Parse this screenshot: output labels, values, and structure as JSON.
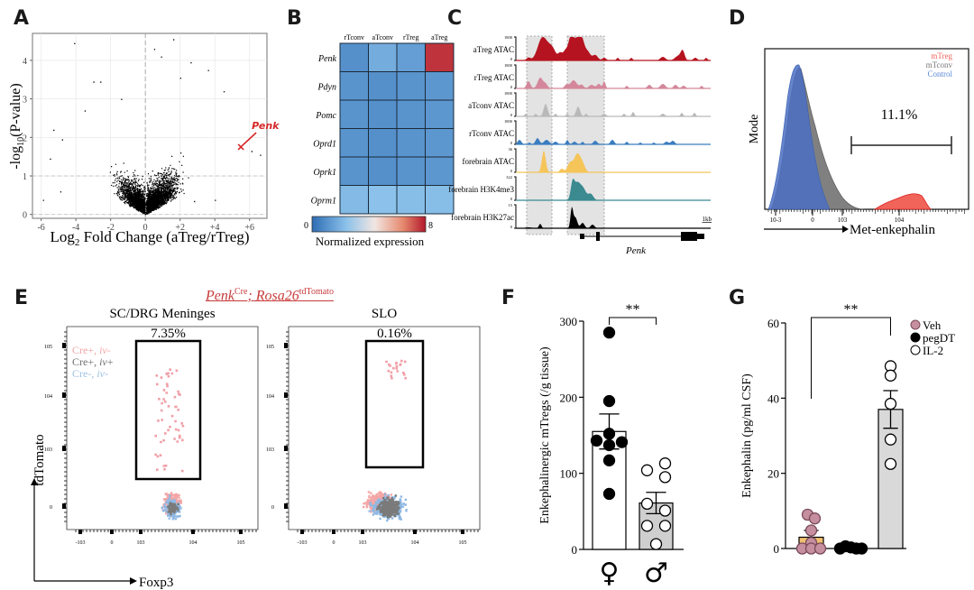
{
  "panels": {
    "A": {
      "letter": "A"
    },
    "B": {
      "letter": "B"
    },
    "C": {
      "letter": "C"
    },
    "D": {
      "letter": "D"
    },
    "E": {
      "letter": "E",
      "genotype_main": "Penk",
      "genotype_sup1": "Cre",
      "genotype_mid": "; Rosa26",
      "genotype_sup2": "tdTomato"
    },
    "F": {
      "letter": "F"
    },
    "G": {
      "letter": "G"
    }
  },
  "chart_data": [
    {
      "id": "A",
      "type": "scatter",
      "title": "",
      "xlabel": "Log2 Fold Change (aTreg/rTreg)",
      "xlabel_main": "Log",
      "xlabel_sub": "2",
      "xlabel_rest": " Fold Change (aTreg/rTreg)",
      "ylabel_pre": "-log",
      "ylabel_sub": "10",
      "ylabel_post": "(P-value)",
      "xlim": [
        -6.5,
        7
      ],
      "ylim": [
        -0.1,
        4.7
      ],
      "xticks": [
        -6,
        -4,
        -2,
        0,
        2,
        4,
        6
      ],
      "xtick_labels": [
        "-6",
        "-4",
        "-2",
        "0",
        "+2",
        "+4",
        "+6"
      ],
      "yticks": [
        0,
        1,
        2,
        3,
        4
      ],
      "ytick_labels": [
        "0",
        "1",
        "2",
        "3",
        "4"
      ],
      "grid": true,
      "threshold_lines": {
        "x": 0,
        "y": [
          0,
          1
        ]
      },
      "highlight": {
        "label": "Penk",
        "x": 5.5,
        "y": 1.75,
        "color": "#d62728"
      },
      "points_description": "Volcano plot of thousands of genes; dense cloud symmetric near 0, more up-regulated genes on positive side",
      "sample_points": [
        [
          -5.9,
          0.38
        ],
        [
          -4.1,
          4.45
        ],
        [
          -3.0,
          3.45
        ],
        [
          -2.6,
          3.45
        ],
        [
          -5.3,
          2.2
        ],
        [
          -4.8,
          1.95
        ],
        [
          -5.5,
          1.45
        ],
        [
          -3.5,
          2.7
        ],
        [
          -1.4,
          3.0
        ],
        [
          -4.9,
          0.6
        ],
        [
          0.5,
          4.3
        ],
        [
          1.6,
          4.55
        ],
        [
          0.9,
          4.1
        ],
        [
          3.6,
          3.75
        ],
        [
          2.6,
          3.95
        ],
        [
          2.0,
          3.55
        ],
        [
          4.5,
          3.2
        ],
        [
          6.6,
          1.55
        ],
        [
          6.1,
          1.65
        ],
        [
          4.0,
          0.38
        ],
        [
          2.8,
          0.35
        ]
      ]
    },
    {
      "id": "B",
      "type": "heatmap",
      "columns": [
        "rTconv",
        "aTconv",
        "rTreg",
        "aTreg"
      ],
      "rows": [
        "Penk",
        "Pdyn",
        "Pomc",
        "Oprd1",
        "Oprk1",
        "Oprm1"
      ],
      "values": [
        [
          1.0,
          1.8,
          1.4,
          7.6
        ],
        [
          1.1,
          1.0,
          1.1,
          1.2
        ],
        [
          1.1,
          1.0,
          1.1,
          1.2
        ],
        [
          1.1,
          1.0,
          1.1,
          1.2
        ],
        [
          1.1,
          1.0,
          1.1,
          1.2
        ],
        [
          2.2,
          2.4,
          2.3,
          2.3
        ]
      ],
      "colorbar": {
        "min": 0,
        "max": 8,
        "min_label": "0",
        "max_label": "8",
        "label": "Normalized expression",
        "colors": [
          "#2e6db4",
          "#8bc1ea",
          "#f1e6e2",
          "#e6896e",
          "#b2182b"
        ]
      }
    },
    {
      "id": "C",
      "type": "area",
      "tracks": [
        {
          "name": "aTreg ATAC",
          "max_label": "1800",
          "min_label": "0",
          "color": "#b5131f"
        },
        {
          "name": "rTreg ATAC",
          "max_label": "1800",
          "min_label": "0",
          "color": "#d4879b"
        },
        {
          "name": "aTconv ATAC",
          "max_label": "1800",
          "min_label": "0",
          "color": "#b9b9b9"
        },
        {
          "name": "rTconv ATAC",
          "max_label": "1800",
          "min_label": "0",
          "color": "#3b7dbf"
        },
        {
          "name": "forebrain ATAC",
          "max_label": "36",
          "min_label": "0",
          "color": "#f5c55a"
        },
        {
          "name": "forebrain H3K4me3",
          "max_label": "322",
          "min_label": "0",
          "color": "#3a8a90"
        },
        {
          "name": "forebrain H3K27ac",
          "max_label": "15",
          "min_label": "0",
          "color": "#000000"
        }
      ],
      "scale_bar": "1kb",
      "gene": "Penk",
      "highlight_regions": 2
    },
    {
      "id": "D",
      "type": "area",
      "xlabel": "Met-enkephalin",
      "ylabel": "Mode",
      "xtick_labels": [
        "10^-3",
        "0",
        "10^3",
        "10^4"
      ],
      "legend": [
        {
          "label": "mTreg",
          "color": "#f0645a"
        },
        {
          "label": "mTconv",
          "color": "#7a7a7a"
        },
        {
          "label": "Control",
          "color": "#4a78c8"
        }
      ],
      "legend_position": "top-right",
      "gate_label": "11.1%"
    },
    {
      "id": "E",
      "type": "scatter",
      "plots": [
        {
          "title": "SC/DRG Meninges",
          "gate_label": "7.35%"
        },
        {
          "title": "SLO",
          "gate_label": "0.16%"
        }
      ],
      "xlabel": "Foxp3",
      "ylabel": "tdTomato",
      "xtick_labels": [
        "-10^3",
        "0",
        "10^3",
        "10^4",
        "10^5"
      ],
      "ytick_labels": [
        "10^5",
        "10^4",
        "10^3",
        "0"
      ],
      "legend": [
        {
          "label_pre": "Cre+, ",
          "label_it": "iv",
          "label_post": "-",
          "color": "#f4a6a6"
        },
        {
          "label_pre": "Cre+, ",
          "label_it": "iv",
          "label_post": "+",
          "color": "#707070"
        },
        {
          "label_pre": "Cre-, ",
          "label_it": "iv",
          "label_post": "-",
          "color": "#9cc2e5"
        }
      ],
      "legend_position": "top-left"
    },
    {
      "id": "F",
      "type": "bar",
      "categories": [
        "♀",
        "♂"
      ],
      "values": [
        155,
        61
      ],
      "sem": [
        23,
        14
      ],
      "points": [
        [
          285,
          195,
          152,
          143,
          141,
          137,
          117,
          73
        ],
        [
          113,
          104,
          95,
          60,
          51,
          31,
          31,
          7
        ]
      ],
      "ylabel": "Enkephalinergic mTregs (/g tissue)",
      "ylim": [
        0,
        300
      ],
      "yticks": [
        0,
        100,
        200,
        300
      ],
      "significance": "**",
      "bar_colors": [
        "#ffffff",
        "#cfcfcf"
      ]
    },
    {
      "id": "G",
      "type": "bar",
      "categories": [
        "Veh",
        "pegDT",
        "IL-2"
      ],
      "values": [
        3,
        0.2,
        37
      ],
      "sem": [
        1.8,
        0.2,
        5
      ],
      "points": [
        [
          9,
          8,
          4.8,
          1.5,
          0,
          0,
          0
        ],
        [
          0.6,
          0.3,
          0,
          0,
          0
        ],
        [
          48.5,
          46,
          38.5,
          29,
          22.5
        ]
      ],
      "ylabel": "Enkephalin (pg/ml CSF)",
      "ylim": [
        0,
        60
      ],
      "yticks": [
        0,
        20,
        40,
        60
      ],
      "significance": "**",
      "legend": [
        {
          "label": "Veh",
          "color": "#c58fa0",
          "style": "filled"
        },
        {
          "label": "pegDT",
          "color": "#000000",
          "style": "filled"
        },
        {
          "label": "IL-2",
          "color": "#ffffff",
          "style": "open"
        }
      ],
      "legend_position": "top-right",
      "bar_colors": [
        "#f0c070",
        "#ffffff",
        "#d9d9d9"
      ]
    }
  ]
}
